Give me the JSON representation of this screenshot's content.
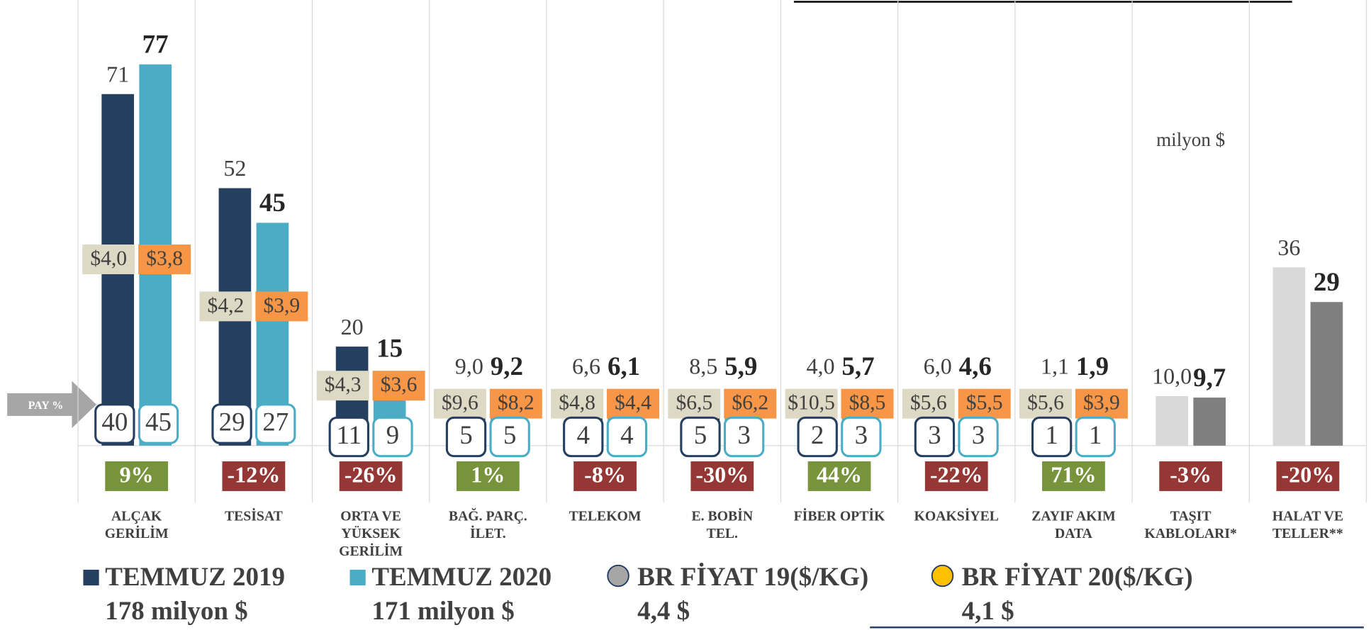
{
  "chart_data": {
    "type": "bar",
    "unit_note": "milyon $",
    "share_label": "PAY %",
    "categories": [
      [
        "ALÇAK",
        "GERİLİM"
      ],
      [
        "TESİSAT"
      ],
      [
        "ORTA VE",
        "YÜKSEK",
        "GERİLİM"
      ],
      [
        "BAĞ. PARÇ.",
        "İLET."
      ],
      [
        "TELEKOM"
      ],
      [
        "E. BOBİN",
        "TEL."
      ],
      [
        "FİBER OPTİK"
      ],
      [
        "KOAKSİYEL"
      ],
      [
        "ZAYIF AKIM",
        "DATA"
      ],
      [
        "TAŞIT",
        "KABLOLARI*"
      ],
      [
        "HALAT VE",
        "TELLER**"
      ]
    ],
    "ylim": [
      0,
      90
    ],
    "series": [
      {
        "name": "TEMMUZ 2019",
        "color": "#243f60",
        "colors": [
          "#243f60",
          "#243f60",
          "#243f60",
          "#243f60",
          "#243f60",
          "#243f60",
          "#243f60",
          "#243f60",
          "#243f60",
          "#d9d9d9",
          "#d9d9d9"
        ],
        "values": [
          71,
          52,
          20,
          9.0,
          6.6,
          8.5,
          4.0,
          6.0,
          1.1,
          10.0,
          36
        ],
        "value_labels": [
          "71",
          "52",
          "20",
          "9,0",
          "6,6",
          "8,5",
          "4,0",
          "6,0",
          "1,1",
          "10,0",
          "36"
        ],
        "shares": [
          40,
          29,
          11,
          5,
          4,
          5,
          2,
          3,
          1,
          null,
          null
        ],
        "total": 178,
        "total_label": "178 milyon $"
      },
      {
        "name": "TEMMUZ 2020",
        "color": "#4bacc6",
        "colors": [
          "#4bacc6",
          "#4bacc6",
          "#4bacc6",
          "#4bacc6",
          "#4bacc6",
          "#4bacc6",
          "#4bacc6",
          "#4bacc6",
          "#4bacc6",
          "#7f7f7f",
          "#7f7f7f"
        ],
        "values": [
          77,
          45,
          15,
          9.2,
          6.1,
          5.9,
          5.7,
          4.6,
          1.9,
          9.7,
          29
        ],
        "value_labels": [
          "77",
          "45",
          "15",
          "9,2",
          "6,1",
          "5,9",
          "5,7",
          "4,6",
          "1,9",
          "9,7",
          "29"
        ],
        "shares": [
          45,
          27,
          9,
          5,
          4,
          3,
          3,
          3,
          1,
          null,
          null
        ],
        "total": 171,
        "total_label": "171 milyon $"
      },
      {
        "name": "BR FİYAT 19($/KG)",
        "color": "#ddd9c4",
        "legend_color": "#a6a6a6",
        "values": [
          4.0,
          4.2,
          4.3,
          9.6,
          4.8,
          6.5,
          10.5,
          5.6,
          5.6,
          null,
          null
        ],
        "value_labels": [
          "$4,0",
          "$4,2",
          "$4,3",
          "$9,6",
          "$4,8",
          "$6,5",
          "$10,5",
          "$5,6",
          "$5,6",
          null,
          null
        ],
        "average": 4.4,
        "average_label": "4,4 $"
      },
      {
        "name": "BR FİYAT 20($/KG)",
        "color": "#f79646",
        "legend_color": "#ffc000",
        "values": [
          3.8,
          3.9,
          3.6,
          8.2,
          4.4,
          6.2,
          8.5,
          5.5,
          3.9,
          null,
          null
        ],
        "value_labels": [
          "$3,8",
          "$3,9",
          "$3,6",
          "$8,2",
          "$4,4",
          "$6,2",
          "$8,5",
          "$5,5",
          "$3,9",
          null,
          null
        ],
        "average": 4.1,
        "average_label": "4,1 $"
      }
    ],
    "change": {
      "values": [
        9,
        -12,
        -26,
        1,
        -8,
        -30,
        44,
        -22,
        71,
        -3,
        -20
      ],
      "labels": [
        "9%",
        "-12%",
        "-26%",
        "1%",
        "-8%",
        "-30%",
        "44%",
        "-22%",
        "71%",
        "-3%",
        "-20%"
      ],
      "positive_color": "#77933c",
      "negative_color": "#953735"
    }
  }
}
